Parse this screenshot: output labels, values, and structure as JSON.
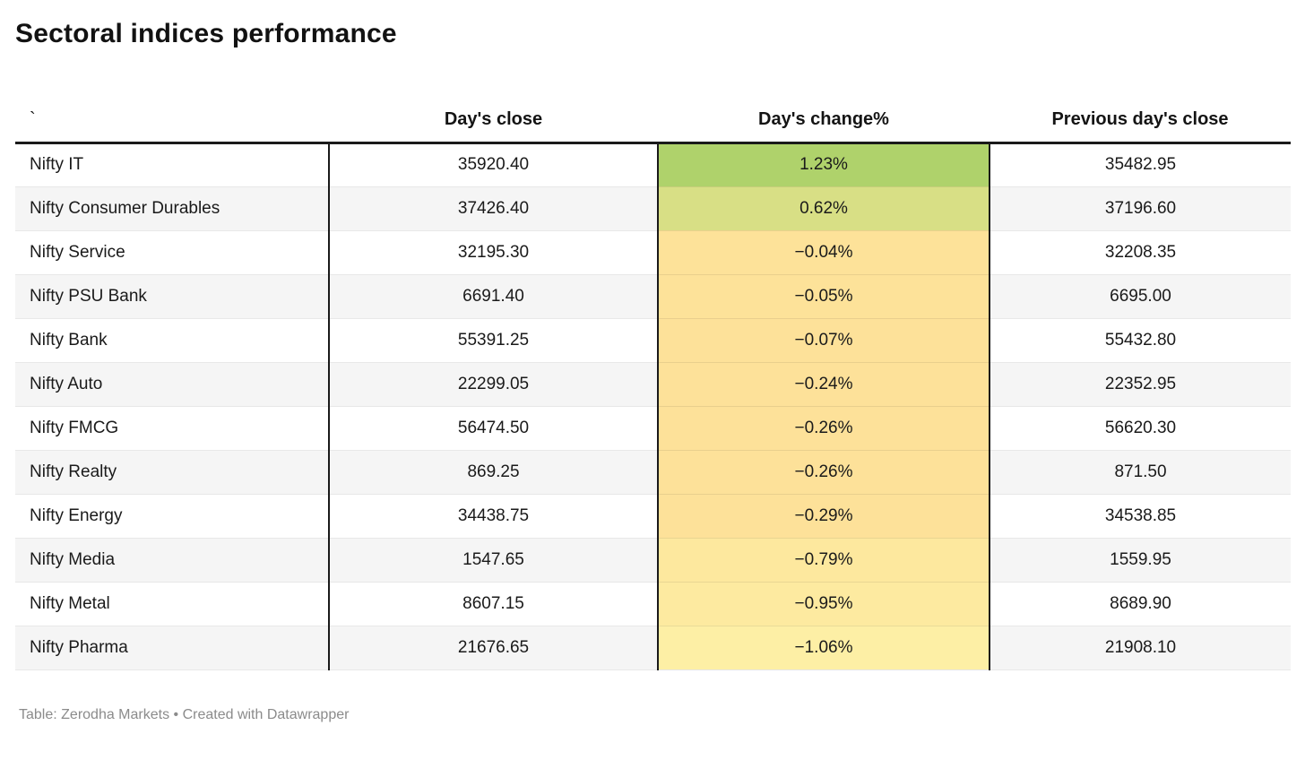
{
  "title": "Sectoral indices performance",
  "table": {
    "columns": {
      "name": "`",
      "close": "Day's close",
      "change": "Day's change%",
      "prev": "Previous day's close"
    },
    "rows": [
      {
        "name": "Nifty IT",
        "close": "35920.40",
        "change": "1.23%",
        "prev": "35482.95",
        "change_bg": "#afd26b"
      },
      {
        "name": "Nifty Consumer Durables",
        "close": "37426.40",
        "change": "0.62%",
        "prev": "37196.60",
        "change_bg": "#d8df85"
      },
      {
        "name": "Nifty Service",
        "close": "32195.30",
        "change": "−0.04%",
        "prev": "32208.35",
        "change_bg": "#fde299"
      },
      {
        "name": "Nifty PSU Bank",
        "close": "6691.40",
        "change": "−0.05%",
        "prev": "6695.00",
        "change_bg": "#fde299"
      },
      {
        "name": "Nifty Bank",
        "close": "55391.25",
        "change": "−0.07%",
        "prev": "55432.80",
        "change_bg": "#fde199"
      },
      {
        "name": "Nifty Auto",
        "close": "22299.05",
        "change": "−0.24%",
        "prev": "22352.95",
        "change_bg": "#fde199"
      },
      {
        "name": "Nifty FMCG",
        "close": "56474.50",
        "change": "−0.26%",
        "prev": "56620.30",
        "change_bg": "#fde199"
      },
      {
        "name": "Nifty Realty",
        "close": "869.25",
        "change": "−0.26%",
        "prev": "871.50",
        "change_bg": "#fde199"
      },
      {
        "name": "Nifty Energy",
        "close": "34438.75",
        "change": "−0.29%",
        "prev": "34538.85",
        "change_bg": "#fde199"
      },
      {
        "name": "Nifty Media",
        "close": "1547.65",
        "change": "−0.79%",
        "prev": "1559.95",
        "change_bg": "#fde89e"
      },
      {
        "name": "Nifty Metal",
        "close": "8607.15",
        "change": "−0.95%",
        "prev": "8689.90",
        "change_bg": "#fdeaa0"
      },
      {
        "name": "Nifty Pharma",
        "close": "21676.65",
        "change": "−1.06%",
        "prev": "21908.10",
        "change_bg": "#fdefa5"
      }
    ]
  },
  "footer": {
    "text": "Table: Zerodha Markets • Created with Datawrapper"
  },
  "colors": {
    "header_rule": "#1a1a1a",
    "divider": "#1a1a1a",
    "row_stripe": "#f5f5f5",
    "row_separator": "#e8e8e8",
    "footer_text": "#8b8b8b",
    "heatmap_positive_max": "#afd26b",
    "heatmap_negative_min": "#fdefa5"
  },
  "chart_data": {
    "type": "table",
    "title": "Sectoral indices performance",
    "columns": [
      "`",
      "Day's close",
      "Day's change%",
      "Previous day's close"
    ],
    "heatmap_column": "Day's change%",
    "rows": [
      [
        "Nifty IT",
        35920.4,
        1.23,
        35482.95
      ],
      [
        "Nifty Consumer Durables",
        37426.4,
        0.62,
        37196.6
      ],
      [
        "Nifty Service",
        32195.3,
        -0.04,
        32208.35
      ],
      [
        "Nifty PSU Bank",
        6691.4,
        -0.05,
        6695.0
      ],
      [
        "Nifty Bank",
        55391.25,
        -0.07,
        55432.8
      ],
      [
        "Nifty Auto",
        22299.05,
        -0.24,
        22352.95
      ],
      [
        "Nifty FMCG",
        56474.5,
        -0.26,
        56620.3
      ],
      [
        "Nifty Realty",
        869.25,
        -0.26,
        871.5
      ],
      [
        "Nifty Energy",
        34438.75,
        -0.29,
        34538.85
      ],
      [
        "Nifty Media",
        1547.65,
        -0.79,
        1559.95
      ],
      [
        "Nifty Metal",
        8607.15,
        -0.95,
        8689.9
      ],
      [
        "Nifty Pharma",
        21676.65,
        -1.06,
        21908.1
      ]
    ],
    "source": "Zerodha Markets",
    "tool": "Datawrapper"
  }
}
